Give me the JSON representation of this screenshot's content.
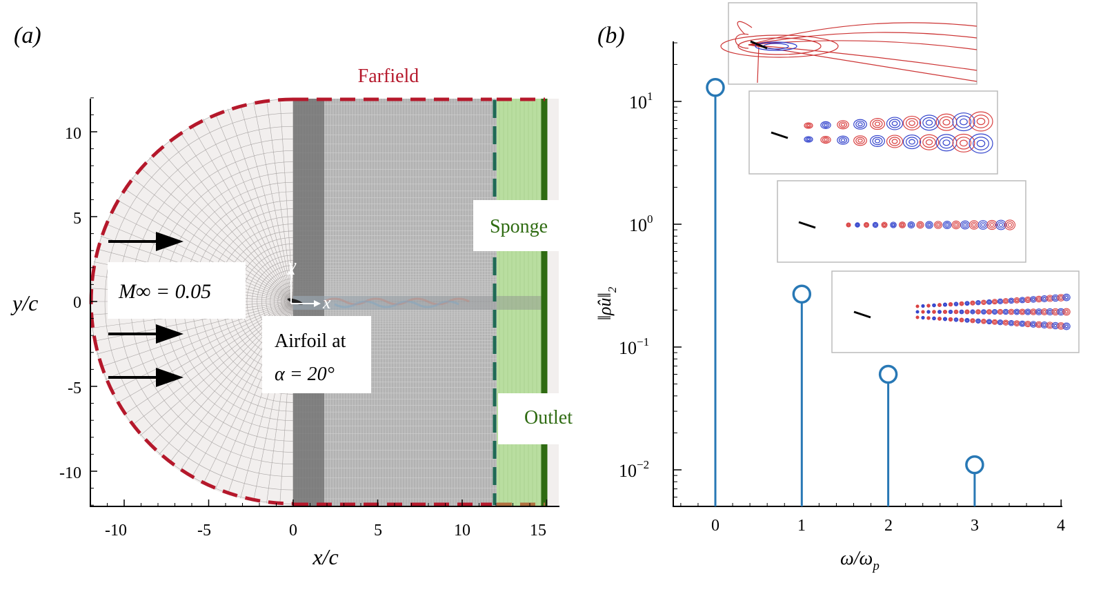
{
  "panels": {
    "a": {
      "label": "(a)",
      "xlabel": "x/c",
      "ylabel": "y/c",
      "xticks": [
        "-10",
        "-5",
        "0",
        "5",
        "10",
        "15"
      ],
      "yticks": [
        "10",
        "5",
        "0",
        "-5",
        "-10"
      ],
      "xlim": [
        -11.8,
        15.6
      ],
      "ylim": [
        -12,
        12
      ],
      "farfield_label": "Farfield",
      "sponge_label": "Sponge",
      "outlet_label": "Outlet",
      "mach_label": "M∞ = 0.05",
      "airfoil_label_1": "Airfoil at",
      "airfoil_label_2": "α = 20°",
      "axis_x": "x",
      "axis_y": "y",
      "sponge_start": 12,
      "outlet_x": 15.2,
      "colors": {
        "farfield": "#b5182b",
        "sponge": "#1f6a55",
        "sponge_fill": "#b9dea0",
        "outlet": "#2f6b12",
        "text_green": "#2f6b12"
      }
    },
    "b": {
      "label": "(b)",
      "xlabel": "ω/ω",
      "xlabel_sub": "p",
      "ylabel": "‖ρ̂u‖",
      "ylabel_sub": "2",
      "xticks": [
        "0",
        "1",
        "2",
        "3",
        "4"
      ],
      "yticks": [
        {
          "base": "10",
          "exp": "1"
        },
        {
          "base": "10",
          "exp": "0"
        },
        {
          "base": "10",
          "exp": "−1"
        },
        {
          "base": "10",
          "exp": "−2"
        }
      ],
      "stem_color": "#2878b5"
    }
  },
  "chart_data": {
    "type": "scatter",
    "subtype": "stem",
    "title": "",
    "xlabel": "ω/ω_p",
    "ylabel": "||ρ̂u||_2",
    "yscale": "log",
    "x": [
      0,
      1,
      2,
      3
    ],
    "values": [
      13.0,
      0.27,
      0.06,
      0.011
    ],
    "xlim": [
      -0.5,
      4
    ],
    "ylim": [
      0.005,
      30
    ]
  }
}
